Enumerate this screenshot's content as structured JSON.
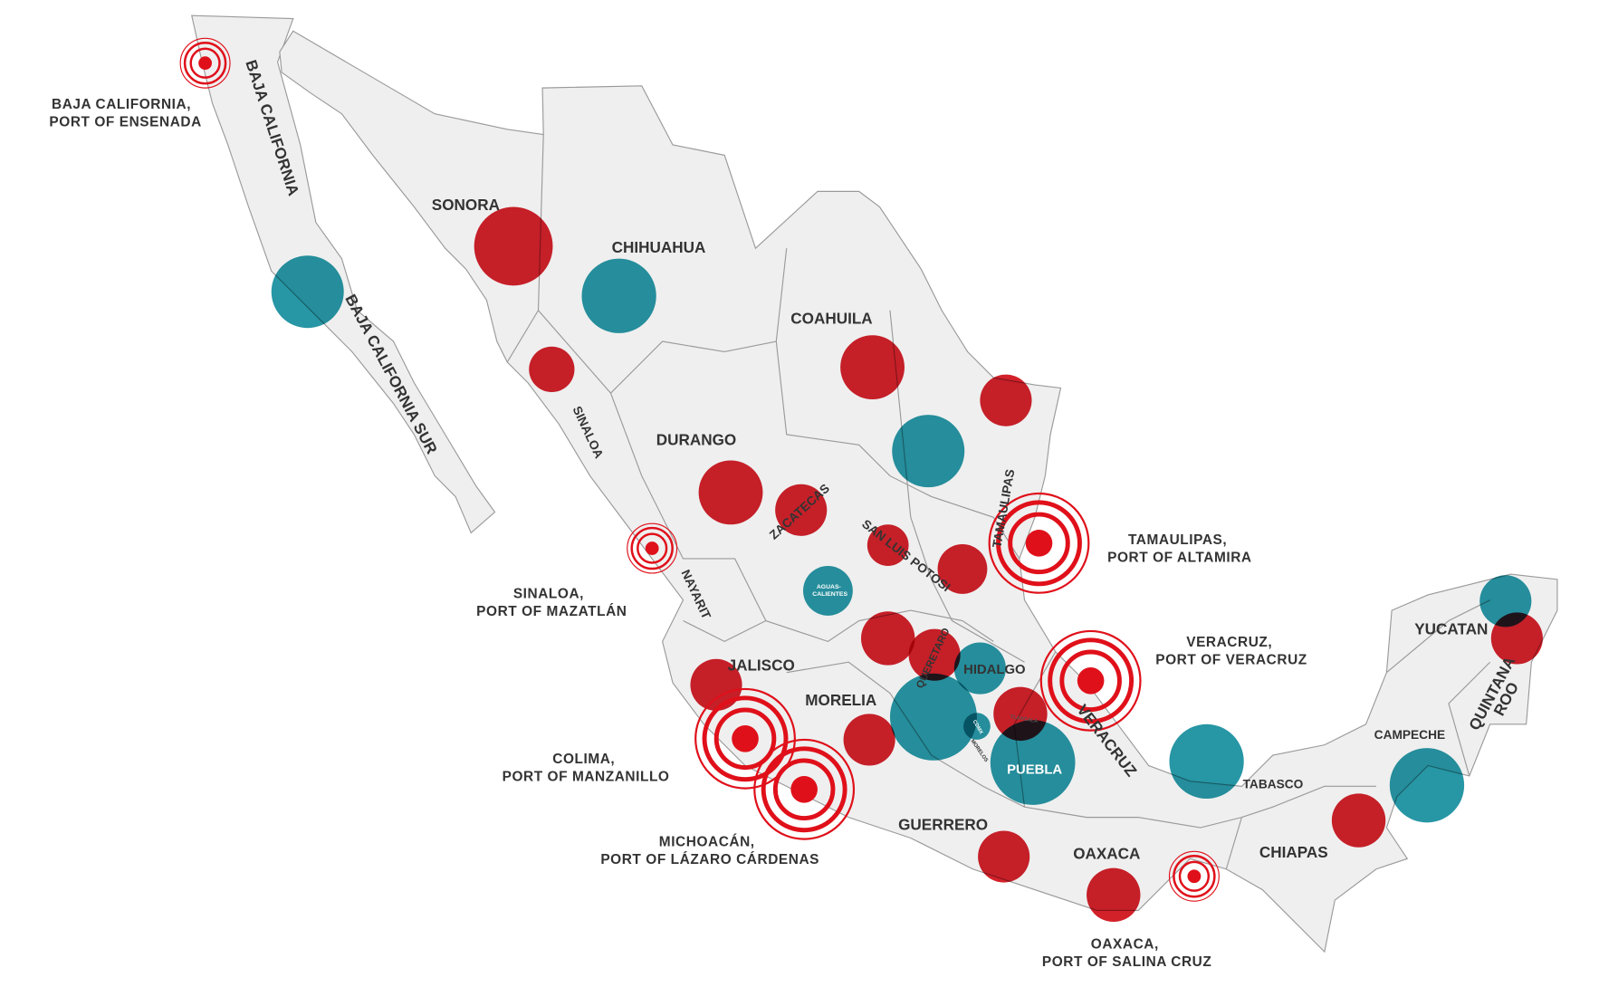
{
  "colors": {
    "land": "#efefef",
    "border": "#9a9a9a",
    "red_marker": "#d0101a",
    "teal_marker": "#178e9e",
    "ring": "#e0101a",
    "label": "#333333"
  },
  "states": {
    "baja_california": "BAJA CALIFORNIA",
    "baja_california_sur": "BAJA CALIFORNIA SUR",
    "sonora": "SONORA",
    "chihuahua": "CHIHUAHUA",
    "coahuila": "COAHUILA",
    "sinaloa": "SINALOA",
    "durango": "DURANGO",
    "zacatecas": "ZACATECAS",
    "san_luis_potosi": "SAN LUIS POTOSI",
    "tamaulipas": "TAMAULIPAS",
    "nayarit": "NAYARIT",
    "aguascalientes_1": "AGUAS-",
    "aguascalientes_2": "CALIENTES",
    "jalisco": "JALISCO",
    "queretaro": "QUERETARO",
    "hidalgo": "HIDALGO",
    "morelia": "MORELIA",
    "cdmx": "CDMX",
    "morelos": "MORELOS",
    "tlaxcala": "TLAXCALA",
    "puebla": "PUEBLA",
    "veracruz": "VERACRUZ",
    "guerrero": "GUERRERO",
    "oaxaca": "OAXACA",
    "tabasco": "TABASCO",
    "chiapas": "CHIAPAS",
    "campeche": "CAMPECHE",
    "yucatan": "YUCATAN",
    "quintana": "QUINTANA",
    "roo": "ROO"
  },
  "ports": {
    "ensenada": {
      "line1": "BAJA CALIFORNIA,",
      "line2": "PORT OF ENSENADA"
    },
    "mazatlan": {
      "line1": "SINALOA,",
      "line2": "PORT OF MAZATLÁN"
    },
    "altamira": {
      "line1": "TAMAULIPAS,",
      "line2": "PORT OF ALTAMIRA"
    },
    "veracruz": {
      "line1": "VERACRUZ,",
      "line2": "PORT OF VERACRUZ"
    },
    "manzanillo": {
      "line1": "COLIMA,",
      "line2": "PORT OF MANZANILLO"
    },
    "lazaro_cardenas": {
      "line1": "MICHOACÁN,",
      "line2": "PORT OF LÁZARO CÁRDENAS"
    },
    "salina_cruz": {
      "line1": "OAXACA,",
      "line2": "PORT OF SALINA CRUZ"
    }
  }
}
